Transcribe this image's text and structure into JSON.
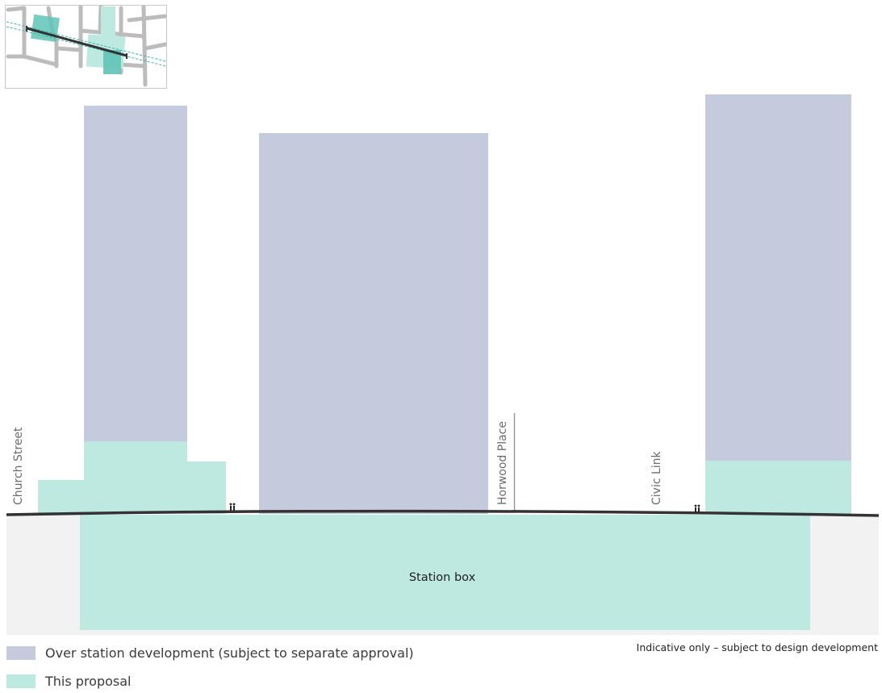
{
  "labels": {
    "church_street": "Church Street",
    "horwood_place": "Horwood Place",
    "civic_link": "Civic Link",
    "station_box": "Station box"
  },
  "legend": [
    {
      "label": "Over station development (subject to separate approval)",
      "color": "#c5cbdd"
    },
    {
      "label": "This proposal",
      "color": "#bde9e1"
    }
  ],
  "note": "Indicative only – subject to design development",
  "colors": {
    "osd": "#c5cbdd",
    "proposal": "#bde9e1",
    "proposal_dark": "#5fc4b6",
    "ground_line": "#333333",
    "below_ground": "#f2f2f2"
  }
}
